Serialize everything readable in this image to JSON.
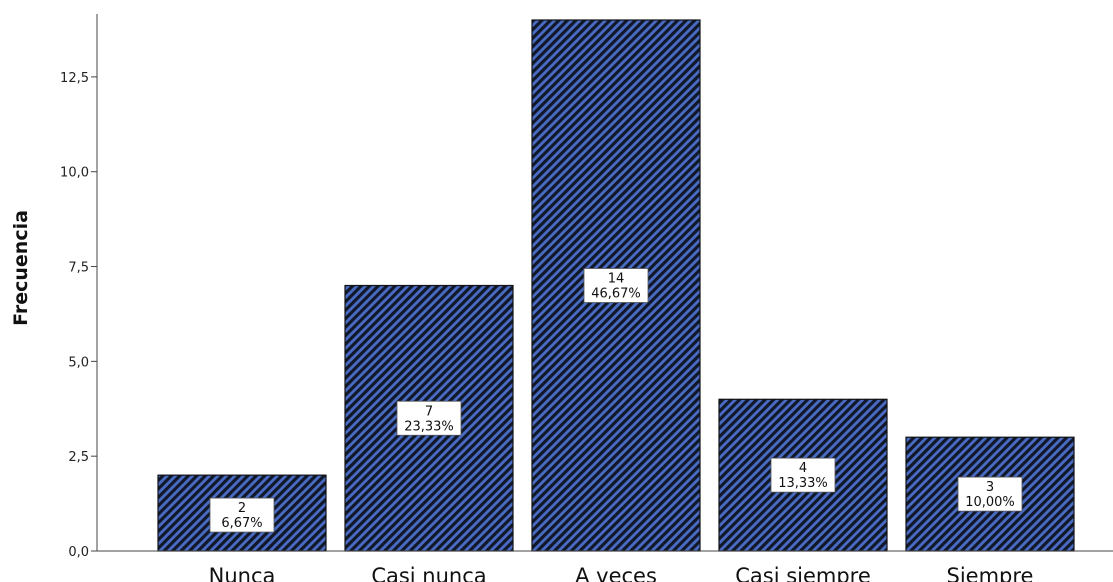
{
  "chart_data": {
    "type": "bar",
    "categories": [
      "Nunca",
      "Casi nunca",
      "A veces",
      "Casi siempre",
      "Siempre"
    ],
    "values": [
      2,
      7,
      14,
      4,
      3
    ],
    "percent_labels": [
      "6,67%",
      "23,33%",
      "46,67%",
      "13,33%",
      "10,00%"
    ],
    "count_labels": [
      "2",
      "7",
      "14",
      "4",
      "3"
    ],
    "ylabel": "Frecuencia",
    "xlabel": "",
    "ylim": [
      0,
      14
    ],
    "yticks": [
      0,
      2.5,
      5,
      7.5,
      10,
      12.5
    ],
    "ytick_labels": [
      "0,0",
      "2,5",
      "5,0",
      "7,5",
      "10,0",
      "12,5"
    ],
    "grid": false,
    "bar_fill": "#4a6cc4",
    "hatch_color": "#10182a",
    "bar_outline": "#111111",
    "label_box_bg": "#ffffff"
  }
}
